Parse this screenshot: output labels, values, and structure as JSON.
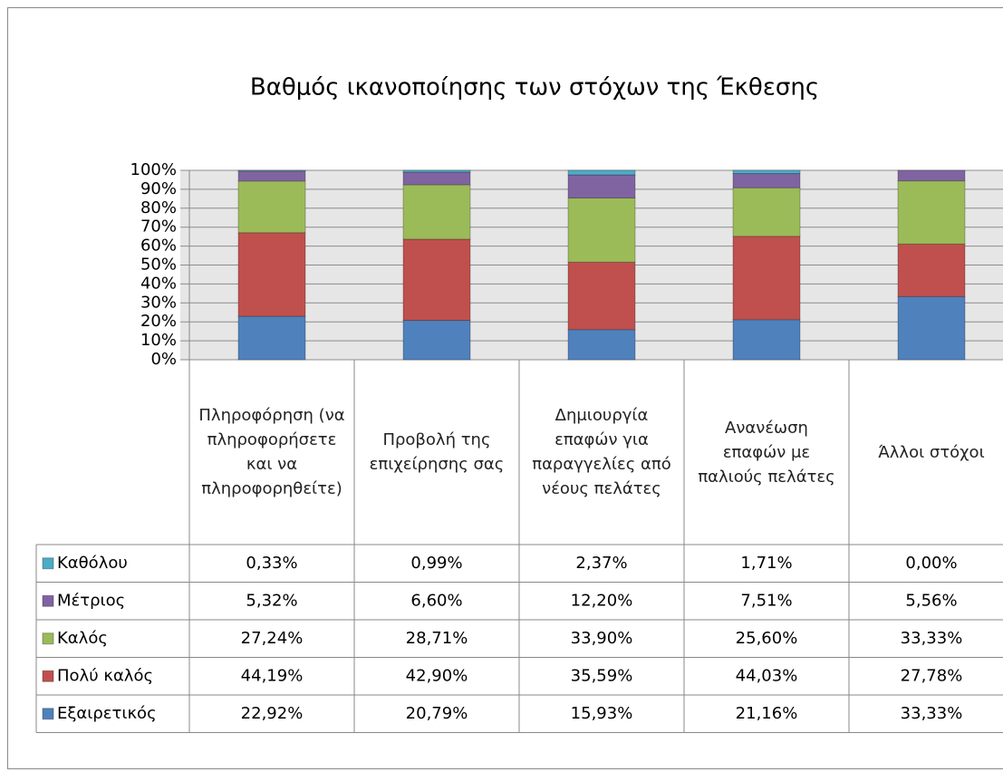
{
  "chart_data": {
    "type": "stacked_bar_100",
    "title": "Βαθμός ικανοποίησης των στόχων της Έκθεσης",
    "categories": [
      "Πληροφόρηση (να πληροφορήσετε και να πληροφορηθείτε)",
      "Προβολή της επιχείρησης σας",
      "Δημιουργία επαφών για παραγγελίες από νέους πελάτες",
      "Ανανέωση επαφών με παλιούς πελάτες",
      "Άλλοι στόχοι"
    ],
    "series": [
      {
        "name": "Καθόλου",
        "color": "#4bacc6",
        "values": [
          0.33,
          0.99,
          2.37,
          1.71,
          0.0
        ],
        "value_labels": [
          "0,33%",
          "0,99%",
          "2,37%",
          "1,71%",
          "0,00%"
        ]
      },
      {
        "name": "Μέτριος",
        "color": "#8064a2",
        "values": [
          5.32,
          6.6,
          12.2,
          7.51,
          5.56
        ],
        "value_labels": [
          "5,32%",
          "6,60%",
          "12,20%",
          "7,51%",
          "5,56%"
        ]
      },
      {
        "name": "Καλός",
        "color": "#9bbb59",
        "values": [
          27.24,
          28.71,
          33.9,
          25.6,
          33.33
        ],
        "value_labels": [
          "27,24%",
          "28,71%",
          "33,90%",
          "25,60%",
          "33,33%"
        ]
      },
      {
        "name": "Πολύ καλός",
        "color": "#c0504d",
        "values": [
          44.19,
          42.9,
          35.59,
          44.03,
          27.78
        ],
        "value_labels": [
          "44,19%",
          "42,90%",
          "35,59%",
          "44,03%",
          "27,78%"
        ]
      },
      {
        "name": "Εξαιρετικός",
        "color": "#4f81bd",
        "values": [
          22.92,
          20.79,
          15.93,
          21.16,
          33.33
        ],
        "value_labels": [
          "22,92%",
          "20,79%",
          "15,93%",
          "21,16%",
          "33,33%"
        ]
      }
    ],
    "ylim": [
      0,
      100
    ],
    "yticks": [
      {
        "value": 0,
        "label": "0%"
      },
      {
        "value": 10,
        "label": "10%"
      },
      {
        "value": 20,
        "label": "20%"
      },
      {
        "value": 30,
        "label": "30%"
      },
      {
        "value": 40,
        "label": "40%"
      },
      {
        "value": 50,
        "label": "50%"
      },
      {
        "value": 60,
        "label": "60%"
      },
      {
        "value": 70,
        "label": "70%"
      },
      {
        "value": 80,
        "label": "80%"
      },
      {
        "value": 90,
        "label": "90%"
      },
      {
        "value": 100,
        "label": "100%"
      }
    ],
    "grid": true
  }
}
